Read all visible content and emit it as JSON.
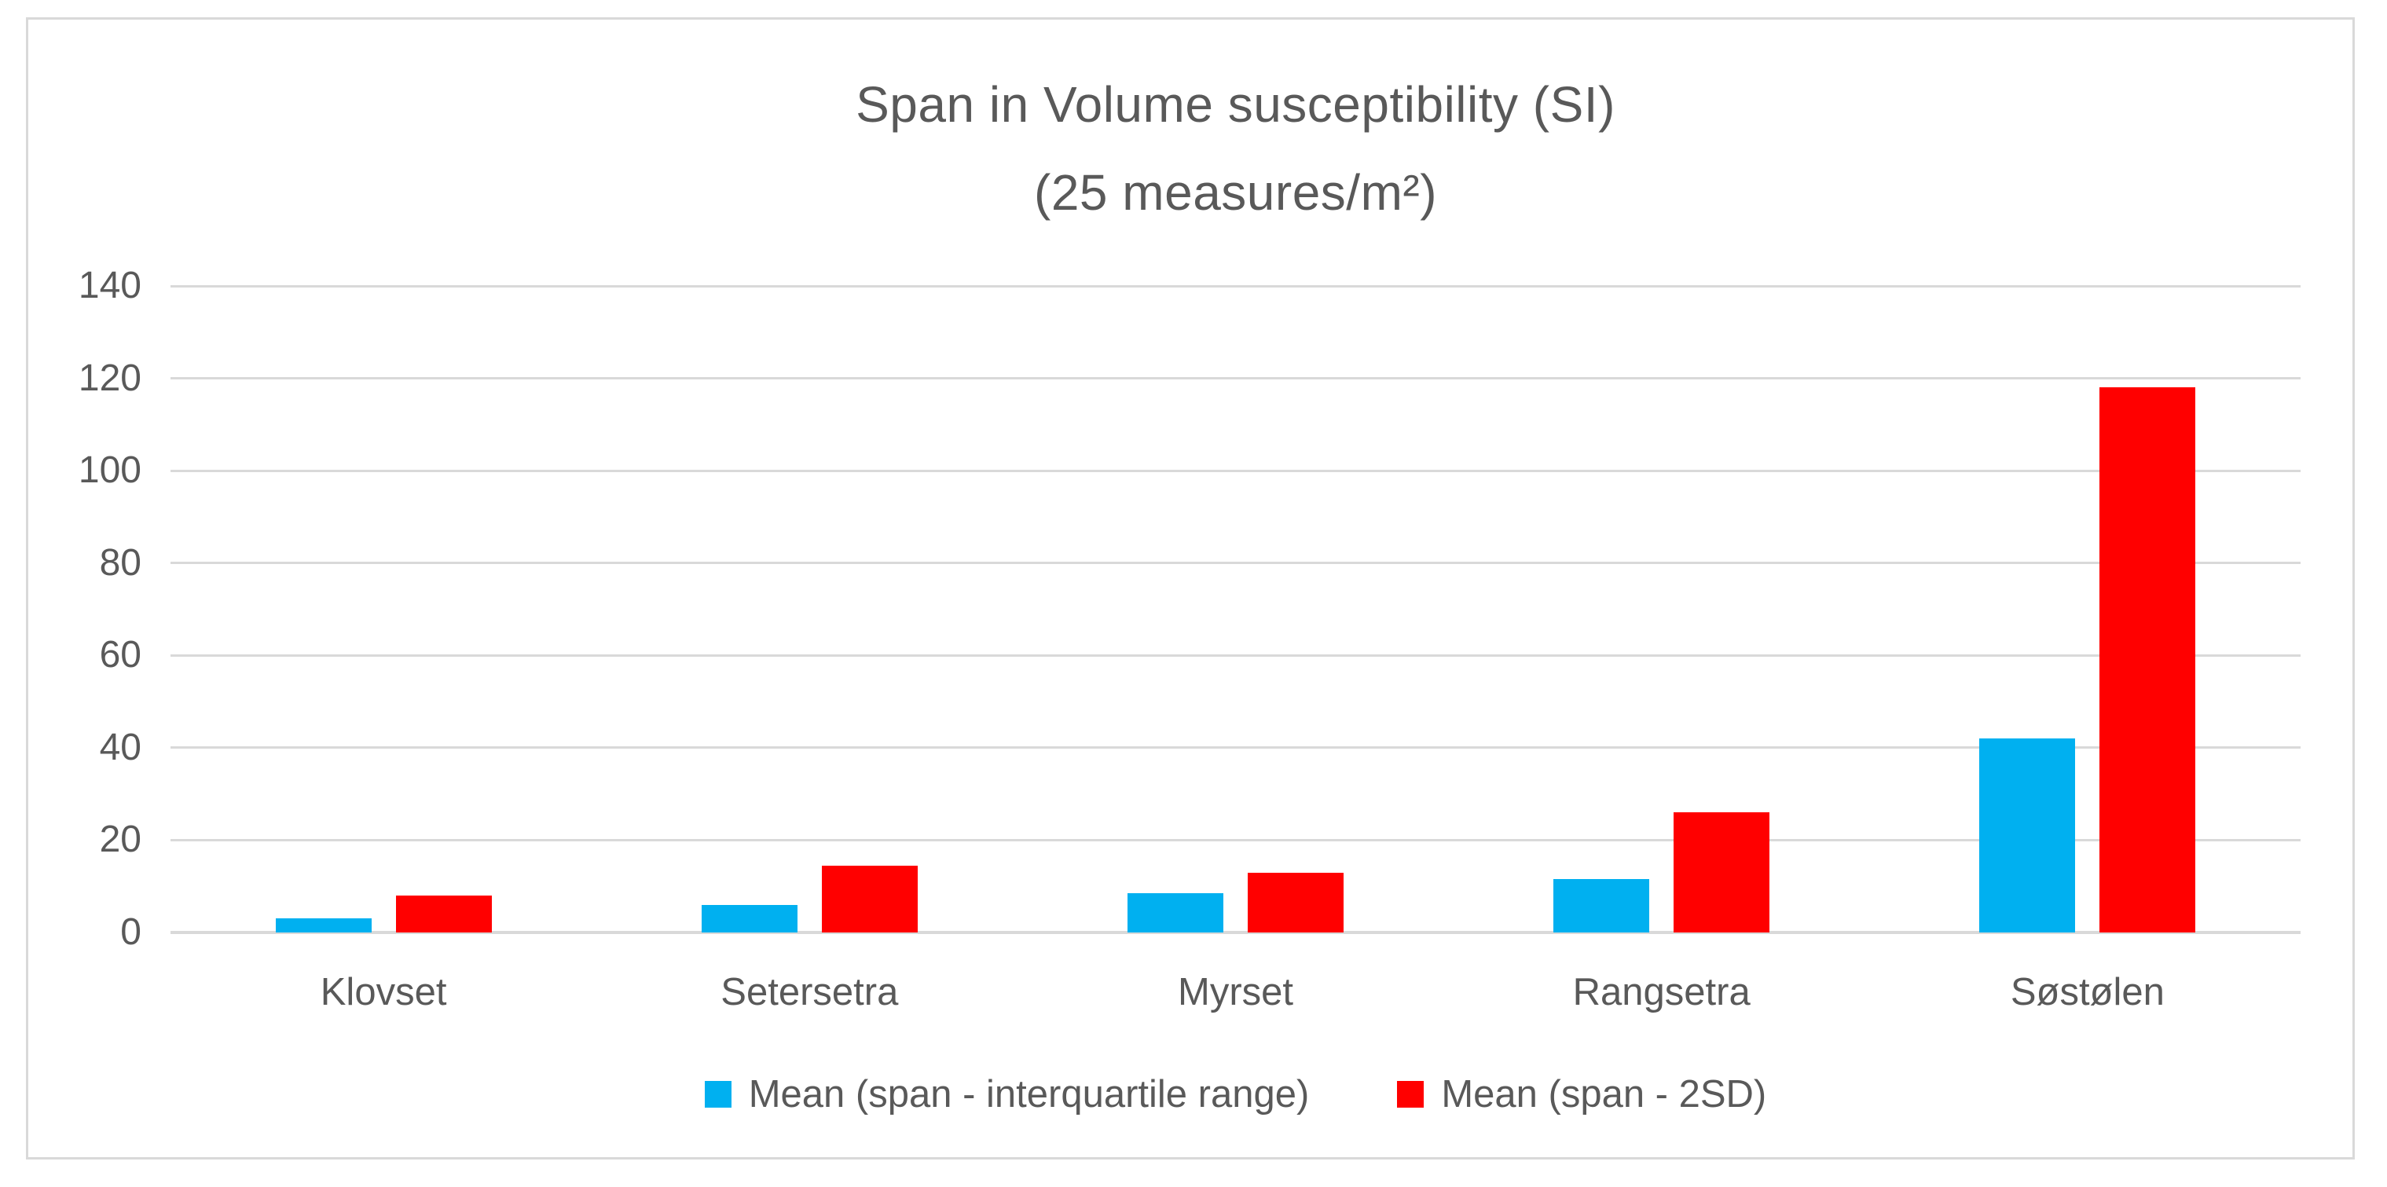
{
  "chart_data": {
    "type": "bar",
    "title": "Span in Volume susceptibility (SI)",
    "subtitle": "(25 measures/m²)",
    "categories": [
      "Klovset",
      "Setersetra",
      "Myrset",
      "Rangsetra",
      "Søstølen"
    ],
    "series": [
      {
        "name": "Mean (span - interquartile range)",
        "color": "#00B0F0",
        "values": [
          3,
          6,
          8.5,
          11.5,
          42
        ]
      },
      {
        "name": "Mean (span - 2SD)",
        "color": "#FF0000",
        "values": [
          8,
          14.5,
          13,
          26,
          118
        ]
      }
    ],
    "xlabel": "",
    "ylabel": "",
    "ylim": [
      0,
      140
    ],
    "yticks": [
      0,
      20,
      40,
      60,
      80,
      100,
      120,
      140
    ],
    "grid": true,
    "legend_position": "bottom"
  },
  "style": {
    "text_color": "#595959",
    "gridline_color": "#D9D9D9",
    "frame_border_color": "#D9D9D9",
    "background_color": "#FFFFFF"
  }
}
